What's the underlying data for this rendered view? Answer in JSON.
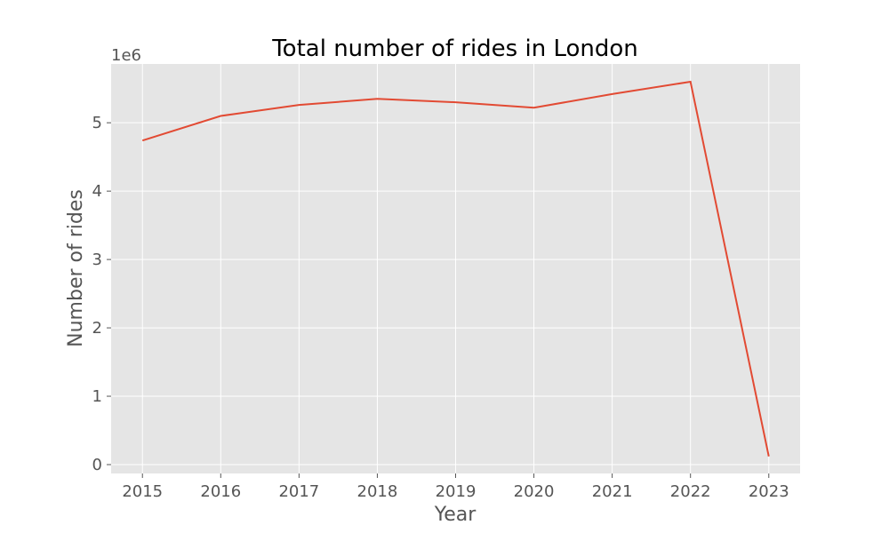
{
  "chart_data": {
    "type": "line",
    "title": "Total number of rides in London",
    "xlabel": "Year",
    "ylabel": "Number of rides",
    "y_offset_label": "1e6",
    "x": [
      2015,
      2016,
      2017,
      2018,
      2019,
      2020,
      2021,
      2022,
      2023
    ],
    "series": [
      {
        "values": [
          4740000,
          5100000,
          5260000,
          5350000,
          5300000,
          5220000,
          5420000,
          5600000,
          120000
        ]
      }
    ],
    "xlim": [
      2014.6,
      2023.4
    ],
    "ylim": [
      -130000,
      5860000
    ],
    "x_ticks": [
      2015,
      2016,
      2017,
      2018,
      2019,
      2020,
      2021,
      2022,
      2023
    ],
    "y_ticks": [
      0,
      1000000,
      2000000,
      3000000,
      4000000,
      5000000
    ],
    "y_tick_labels": [
      "0",
      "1",
      "2",
      "3",
      "4",
      "5"
    ],
    "grid": true,
    "colors": {
      "line": "#E24A33",
      "plot_background": "#E5E5E5",
      "grid": "#FFFFFF",
      "text": "#555555"
    }
  }
}
